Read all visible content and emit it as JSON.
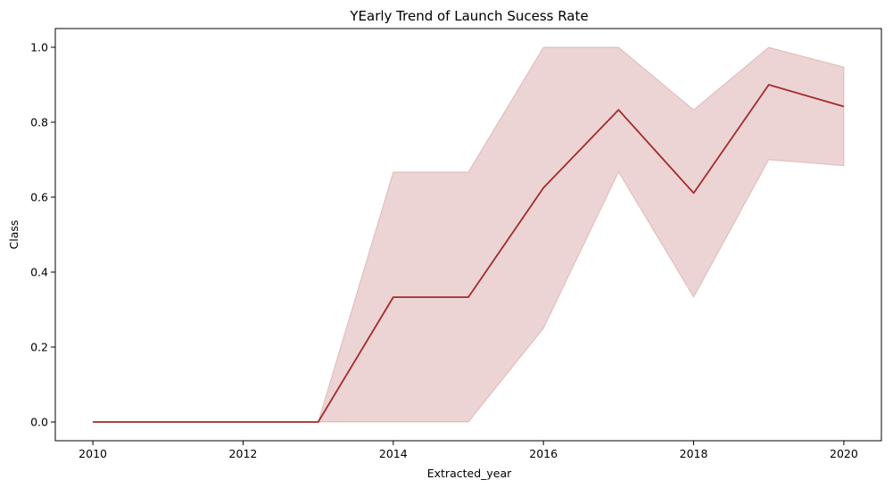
{
  "chart_data": {
    "type": "line",
    "title": "YEarly Trend of Launch Sucess Rate",
    "xlabel": "Extracted_year",
    "ylabel": "Class",
    "x": [
      2010,
      2012,
      2013,
      2014,
      2015,
      2016,
      2017,
      2018,
      2019,
      2020
    ],
    "series": [
      {
        "values": [
          0.0,
          0.0,
          0.0,
          0.333,
          0.333,
          0.625,
          0.833,
          0.611,
          0.9,
          0.842
        ],
        "ci_lower": [
          0.0,
          0.0,
          0.0,
          0.0,
          0.0,
          0.25,
          0.667,
          0.333,
          0.7,
          0.684
        ],
        "ci_upper": [
          0.0,
          0.0,
          0.0,
          0.667,
          0.667,
          1.0,
          1.0,
          0.833,
          1.0,
          0.947
        ],
        "color": "#a52a2a"
      }
    ],
    "xticks": [
      "2010",
      "2012",
      "2014",
      "2016",
      "2018",
      "2020"
    ],
    "yticks": [
      "0.0",
      "0.2",
      "0.4",
      "0.6",
      "0.8",
      "1.0"
    ],
    "xlim": [
      2009.5,
      2020.5
    ],
    "ylim": [
      -0.05,
      1.05
    ],
    "grid": false,
    "legend": "none"
  }
}
